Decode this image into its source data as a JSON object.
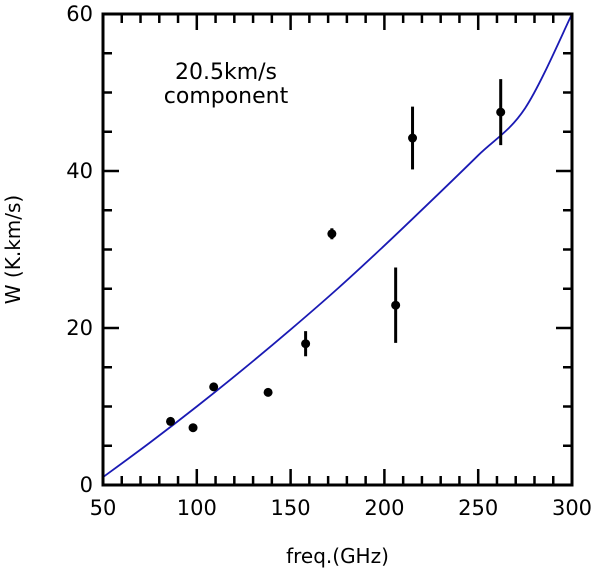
{
  "chart_data": {
    "type": "scatter",
    "xlabel": "freq.(GHz)",
    "ylabel": "W (K.km/s)",
    "xlim": [
      50,
      300
    ],
    "ylim": [
      0,
      60
    ],
    "xticks": [
      50,
      100,
      150,
      200,
      250,
      300
    ],
    "yticks": [
      0,
      20,
      40,
      60
    ],
    "annotation": [
      "20.5km/s",
      "component"
    ],
    "grid": false,
    "points": [
      {
        "x": 86,
        "y": 8.1,
        "err": 0.5
      },
      {
        "x": 98,
        "y": 7.3,
        "err": 0.4
      },
      {
        "x": 109,
        "y": 12.5,
        "err": 0.5
      },
      {
        "x": 138,
        "y": 11.8,
        "err": 0.4
      },
      {
        "x": 158,
        "y": 18,
        "err": 1.6
      },
      {
        "x": 172,
        "y": 32,
        "err": 0.7
      },
      {
        "x": 206,
        "y": 22.9,
        "err": 4.8
      },
      {
        "x": 215,
        "y": 44.2,
        "err": 4.0
      },
      {
        "x": 262,
        "y": 47.5,
        "err": 4.2
      }
    ],
    "fit_curve": {
      "color": "#1a1ab4",
      "x": [
        50,
        75,
        100,
        125,
        150,
        175,
        200,
        225,
        250,
        275,
        300
      ],
      "y": [
        1.0,
        5.4,
        10.0,
        14.8,
        19.8,
        25.0,
        30.5,
        36.2,
        42.0,
        48.0,
        60.0
      ]
    }
  }
}
